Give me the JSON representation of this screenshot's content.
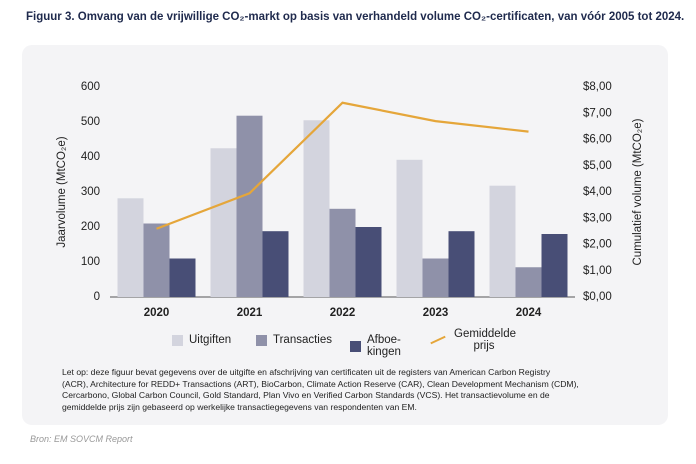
{
  "chart_data": {
    "type": "bar-line",
    "title": "Figuur 3. Omvang van de vrijwillige CO₂-markt op basis van verhandeld volume CO₂-certificaten, van vóór 2005 tot 2024.",
    "y_label": "Jaarvolume (MtCO₂e)",
    "y2_label": "Cumulatief volume (MtCO₂e)",
    "categories": [
      "2020",
      "2021",
      "2022",
      "2023",
      "2024"
    ],
    "series": [
      {
        "name": "Uitgiften",
        "color": "#d3d4de",
        "values": [
          282,
          425,
          505,
          392,
          318
        ]
      },
      {
        "name": "Transacties",
        "color": "#8f91a9",
        "values": [
          210,
          518,
          252,
          110,
          85
        ]
      },
      {
        "name": "Afboe-kingen",
        "color": "#484e76",
        "values": [
          110,
          188,
          200,
          188,
          180
        ]
      },
      {
        "name": "Gemiddelde prijs",
        "color": "#e5a63a",
        "type": "line",
        "axis": "y2",
        "values": [
          2.6,
          3.95,
          7.4,
          6.7,
          6.3
        ]
      }
    ],
    "ylim": [
      0,
      600
    ],
    "yticks": [
      0,
      100,
      200,
      300,
      400,
      500,
      600
    ],
    "y2lim": [
      0,
      8
    ],
    "y2ticks": [
      {
        "value": 0,
        "label": "$0,00"
      },
      {
        "value": 1,
        "label": "$1,00"
      },
      {
        "value": 2,
        "label": "$2,00"
      },
      {
        "value": 3,
        "label": "$3,00"
      },
      {
        "value": 4,
        "label": "$4,00"
      },
      {
        "value": 5,
        "label": "$5,00"
      },
      {
        "value": 6,
        "label": "$6,00"
      },
      {
        "value": 7,
        "label": "$7,00"
      },
      {
        "value": 8,
        "label": "$8,00"
      }
    ],
    "grid": false,
    "note": [
      "Let op: deze figuur bevat gegevens over de uitgifte en afschrijving van certificaten uit de registers van American Carbon Registry",
      "(ACR), Architecture for REDD+ Transactions (ART), BioCarbon, Climate Action Reserve (CAR), Clean Development Mechanism (CDM),",
      "Cercarbono, Global Carbon Council, Gold Standard, Plan Vivo en Verified Carbon Standards (VCS). Het transactievolume en de",
      "gemiddelde prijs zijn gebaseerd op werkelijke transactiegegevens van respondenten van EM."
    ],
    "source": "Bron: EM SOVCM Report"
  }
}
